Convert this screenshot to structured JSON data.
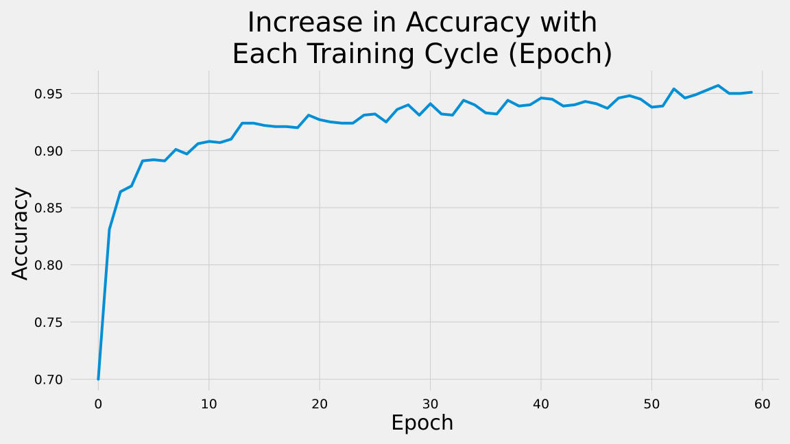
{
  "chart_data": {
    "type": "line",
    "title_lines": [
      "Increase in Accuracy with",
      "Each Training Cycle (Epoch)"
    ],
    "xlabel": "Epoch",
    "ylabel": "Accuracy",
    "xlim": [
      -2.5,
      61.5
    ],
    "ylim": [
      0.69,
      0.97
    ],
    "xticks": [
      0,
      10,
      20,
      30,
      40,
      50,
      60
    ],
    "yticks": [
      0.7,
      0.75,
      0.8,
      0.85,
      0.9,
      0.95
    ],
    "grid": true,
    "series": [
      {
        "color": "#008fd5",
        "x": [
          0,
          1,
          2,
          3,
          4,
          5,
          6,
          7,
          8,
          9,
          10,
          11,
          12,
          13,
          14,
          15,
          16,
          17,
          18,
          19,
          20,
          21,
          22,
          23,
          24,
          25,
          26,
          27,
          28,
          29,
          30,
          31,
          32,
          33,
          34,
          35,
          36,
          37,
          38,
          39,
          40,
          41,
          42,
          43,
          44,
          45,
          46,
          47,
          48,
          49,
          50,
          51,
          52,
          53,
          54,
          55,
          56,
          57,
          58,
          59
        ],
        "values": [
          0.7,
          0.831,
          0.864,
          0.869,
          0.891,
          0.892,
          0.891,
          0.901,
          0.897,
          0.906,
          0.908,
          0.907,
          0.91,
          0.924,
          0.924,
          0.922,
          0.921,
          0.921,
          0.92,
          0.931,
          0.927,
          0.925,
          0.924,
          0.924,
          0.931,
          0.932,
          0.925,
          0.936,
          0.94,
          0.931,
          0.941,
          0.932,
          0.931,
          0.944,
          0.94,
          0.933,
          0.932,
          0.944,
          0.939,
          0.94,
          0.946,
          0.945,
          0.939,
          0.94,
          0.943,
          0.941,
          0.937,
          0.946,
          0.948,
          0.945,
          0.938,
          0.939,
          0.954,
          0.946,
          0.949,
          0.953,
          0.957,
          0.95,
          0.95,
          0.951
        ]
      }
    ]
  }
}
